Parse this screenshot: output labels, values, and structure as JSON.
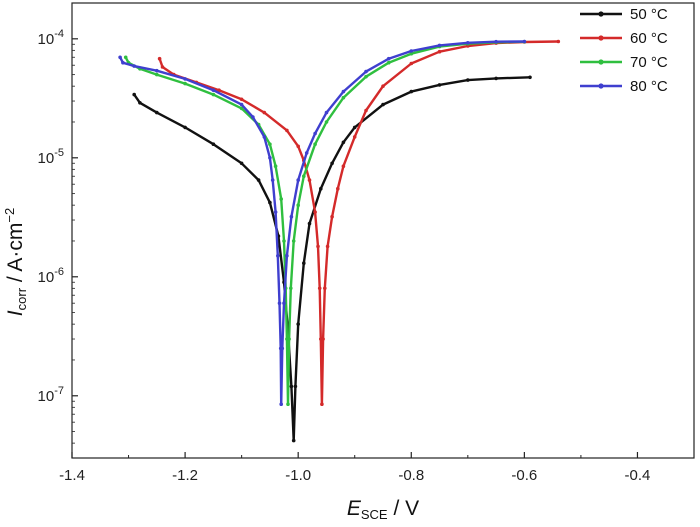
{
  "chart_data": {
    "type": "line",
    "x_axis": {
      "range": [
        -1.4,
        -0.3
      ],
      "ticks": [
        -1.4,
        -1.2,
        -1.0,
        -0.8,
        -0.6,
        -0.4
      ],
      "tick_labels": [
        "-1.4",
        "-1.2",
        "-1.0",
        "-0.8",
        "-0.6",
        "-0.4"
      ],
      "label_main": "E",
      "label_sub": "SCE",
      "label_rest": " / V"
    },
    "y_axis": {
      "scale": "log",
      "range": [
        3e-08,
        0.0002
      ],
      "ticks": [
        1e-07,
        1e-06,
        1e-05,
        0.0001
      ],
      "tick_exponents": [
        "-7",
        "-6",
        "-5",
        "-4"
      ],
      "tick_base": "10",
      "label_main": "I",
      "label_sub": "corr",
      "label_rest": " / A·cm",
      "label_sup": "−2"
    },
    "grid": false,
    "legend": {
      "placement": "top-right",
      "entries": [
        "50 °C",
        "60 °C",
        "70 °C",
        "80 °C"
      ]
    },
    "series": [
      {
        "name": "50 °C",
        "color": "#111111",
        "cathodic": [
          [
            -1.29,
            3.4e-05
          ],
          [
            -1.28,
            2.9e-05
          ],
          [
            -1.25,
            2.4e-05
          ],
          [
            -1.2,
            1.8e-05
          ],
          [
            -1.15,
            1.3e-05
          ],
          [
            -1.1,
            9e-06
          ],
          [
            -1.07,
            6.5e-06
          ],
          [
            -1.05,
            4.2e-06
          ],
          [
            -1.035,
            2.2e-06
          ],
          [
            -1.025,
            9e-07
          ],
          [
            -1.018,
            3.5e-07
          ],
          [
            -1.012,
            1.2e-07
          ],
          [
            -1.008,
            4.2e-08
          ]
        ],
        "anodic": [
          [
            -1.008,
            4.2e-08
          ],
          [
            -1.005,
            1.2e-07
          ],
          [
            -1.0,
            4e-07
          ],
          [
            -0.99,
            1.3e-06
          ],
          [
            -0.98,
            2.8e-06
          ],
          [
            -0.96,
            5.5e-06
          ],
          [
            -0.94,
            9e-06
          ],
          [
            -0.92,
            1.35e-05
          ],
          [
            -0.9,
            1.8e-05
          ],
          [
            -0.85,
            2.8e-05
          ],
          [
            -0.8,
            3.6e-05
          ],
          [
            -0.75,
            4.1e-05
          ],
          [
            -0.7,
            4.5e-05
          ],
          [
            -0.65,
            4.65e-05
          ],
          [
            -0.59,
            4.75e-05
          ]
        ]
      },
      {
        "name": "60 °C",
        "color": "#d42a2a",
        "cathodic": [
          [
            -1.245,
            6.8e-05
          ],
          [
            -1.24,
            5.8e-05
          ],
          [
            -1.22,
            5e-05
          ],
          [
            -1.18,
            4.3e-05
          ],
          [
            -1.14,
            3.7e-05
          ],
          [
            -1.1,
            3.1e-05
          ],
          [
            -1.06,
            2.4e-05
          ],
          [
            -1.02,
            1.7e-05
          ],
          [
            -1.0,
            1.25e-05
          ],
          [
            -0.99,
            9.5e-06
          ],
          [
            -0.98,
            6.5e-06
          ],
          [
            -0.97,
            3.5e-06
          ],
          [
            -0.965,
            1.8e-06
          ],
          [
            -0.962,
            8e-07
          ],
          [
            -0.96,
            3e-07
          ],
          [
            -0.958,
            8.5e-08
          ]
        ],
        "anodic": [
          [
            -0.958,
            8.5e-08
          ],
          [
            -0.956,
            3e-07
          ],
          [
            -0.953,
            8e-07
          ],
          [
            -0.948,
            1.8e-06
          ],
          [
            -0.94,
            3.2e-06
          ],
          [
            -0.93,
            5.5e-06
          ],
          [
            -0.92,
            8.5e-06
          ],
          [
            -0.9,
            1.5e-05
          ],
          [
            -0.88,
            2.5e-05
          ],
          [
            -0.85,
            4e-05
          ],
          [
            -0.8,
            6.2e-05
          ],
          [
            -0.75,
            7.8e-05
          ],
          [
            -0.7,
            8.7e-05
          ],
          [
            -0.65,
            9.2e-05
          ],
          [
            -0.6,
            9.4e-05
          ],
          [
            -0.54,
            9.5e-05
          ]
        ]
      },
      {
        "name": "70 °C",
        "color": "#2fbf3f",
        "cathodic": [
          [
            -1.305,
            7e-05
          ],
          [
            -1.3,
            6.3e-05
          ],
          [
            -1.28,
            5.6e-05
          ],
          [
            -1.25,
            5e-05
          ],
          [
            -1.2,
            4.2e-05
          ],
          [
            -1.15,
            3.4e-05
          ],
          [
            -1.1,
            2.6e-05
          ],
          [
            -1.07,
            1.9e-05
          ],
          [
            -1.05,
            1.3e-05
          ],
          [
            -1.04,
            8.5e-06
          ],
          [
            -1.03,
            4.5e-06
          ],
          [
            -1.025,
            2e-06
          ],
          [
            -1.022,
            8e-07
          ],
          [
            -1.02,
            3e-07
          ],
          [
            -1.018,
            8.5e-08
          ]
        ],
        "anodic": [
          [
            -1.018,
            8.5e-08
          ],
          [
            -1.016,
            3e-07
          ],
          [
            -1.013,
            8e-07
          ],
          [
            -1.008,
            2e-06
          ],
          [
            -1.0,
            4e-06
          ],
          [
            -0.99,
            7e-06
          ],
          [
            -0.97,
            1.3e-05
          ],
          [
            -0.95,
            2e-05
          ],
          [
            -0.92,
            3.2e-05
          ],
          [
            -0.88,
            4.8e-05
          ],
          [
            -0.84,
            6.3e-05
          ],
          [
            -0.8,
            7.5e-05
          ],
          [
            -0.75,
            8.6e-05
          ],
          [
            -0.7,
            9.1e-05
          ],
          [
            -0.65,
            9.35e-05
          ],
          [
            -0.6,
            9.45e-05
          ]
        ]
      },
      {
        "name": "80 °C",
        "color": "#3f3fcf",
        "cathodic": [
          [
            -1.315,
            7e-05
          ],
          [
            -1.31,
            6.3e-05
          ],
          [
            -1.29,
            5.9e-05
          ],
          [
            -1.25,
            5.4e-05
          ],
          [
            -1.2,
            4.6e-05
          ],
          [
            -1.15,
            3.7e-05
          ],
          [
            -1.1,
            2.8e-05
          ],
          [
            -1.08,
            2.2e-05
          ],
          [
            -1.06,
            1.5e-05
          ],
          [
            -1.05,
            1e-05
          ],
          [
            -1.045,
            6.5e-06
          ],
          [
            -1.04,
            3.5e-06
          ],
          [
            -1.036,
            1.5e-06
          ],
          [
            -1.033,
            6e-07
          ],
          [
            -1.031,
            2.5e-07
          ],
          [
            -1.03,
            8.5e-08
          ]
        ],
        "anodic": [
          [
            -1.03,
            8.5e-08
          ],
          [
            -1.028,
            2.5e-07
          ],
          [
            -1.025,
            6e-07
          ],
          [
            -1.02,
            1.5e-06
          ],
          [
            -1.012,
            3.2e-06
          ],
          [
            -1.0,
            6.5e-06
          ],
          [
            -0.985,
            1.1e-05
          ],
          [
            -0.97,
            1.6e-05
          ],
          [
            -0.95,
            2.4e-05
          ],
          [
            -0.92,
            3.6e-05
          ],
          [
            -0.88,
            5.3e-05
          ],
          [
            -0.84,
            6.8e-05
          ],
          [
            -0.8,
            7.9e-05
          ],
          [
            -0.75,
            8.8e-05
          ],
          [
            -0.7,
            9.25e-05
          ],
          [
            -0.65,
            9.45e-05
          ],
          [
            -0.6,
            9.5e-05
          ]
        ]
      }
    ]
  }
}
